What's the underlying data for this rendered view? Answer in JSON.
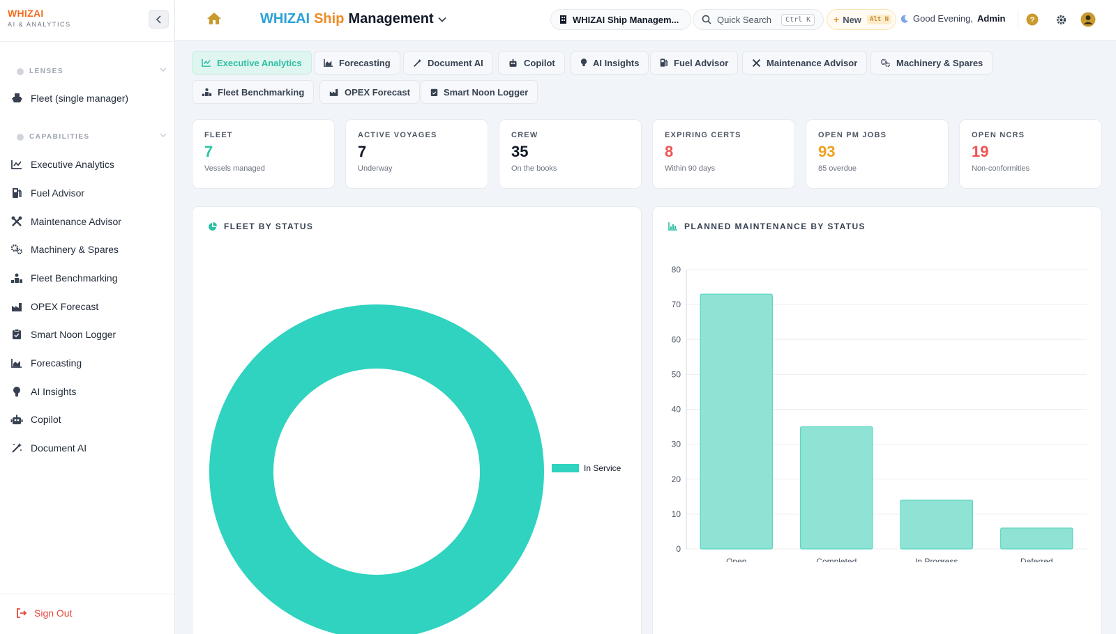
{
  "brand": {
    "name": "WHIZAI",
    "subtitle": "AI & ANALYTICS"
  },
  "header": {
    "title_part1": "WHIZAI",
    "title_part2": "Ship",
    "title_part3": "Management",
    "company": "WHIZAI Ship Managem...",
    "search_placeholder": "Quick Search",
    "search_shortcut": "Ctrl K",
    "new_label": "New",
    "new_shortcut": "Alt N",
    "greeting": "Good Evening,",
    "user": "Admin"
  },
  "sidebar": {
    "lenses_label": "LENSES",
    "lens_item": "Fleet (single manager)",
    "capabilities_label": "CAPABILITIES",
    "items": [
      {
        "label": "Executive Analytics",
        "icon": "line-chart-icon"
      },
      {
        "label": "Fuel Advisor",
        "icon": "gas-pump-icon"
      },
      {
        "label": "Maintenance Advisor",
        "icon": "tools-icon"
      },
      {
        "label": "Machinery & Spares",
        "icon": "gears-icon"
      },
      {
        "label": "Fleet Benchmarking",
        "icon": "benchmark-icon"
      },
      {
        "label": "OPEX Forecast",
        "icon": "factory-icon"
      },
      {
        "label": "Smart Noon Logger",
        "icon": "clipboard-icon"
      },
      {
        "label": "Forecasting",
        "icon": "area-chart-icon"
      },
      {
        "label": "AI Insights",
        "icon": "lightbulb-icon"
      },
      {
        "label": "Copilot",
        "icon": "robot-icon"
      },
      {
        "label": "Document AI",
        "icon": "magic-wand-icon"
      }
    ],
    "sign_out": "Sign Out"
  },
  "tabs": [
    {
      "label": "Executive Analytics",
      "active": true
    },
    {
      "label": "Forecasting"
    },
    {
      "label": "Document AI"
    },
    {
      "label": "Copilot"
    },
    {
      "label": "AI Insights"
    },
    {
      "label": "Fuel Advisor"
    },
    {
      "label": "Maintenance Advisor"
    },
    {
      "label": "Machinery & Spares"
    },
    {
      "label": "Fleet Benchmarking"
    },
    {
      "label": "OPEX Forecast"
    },
    {
      "label": "Smart Noon Logger"
    }
  ],
  "stats": [
    {
      "label": "FLEET",
      "value": "7",
      "sub": "Vessels managed",
      "color": "#2ec4a6"
    },
    {
      "label": "ACTIVE VOYAGES",
      "value": "7",
      "sub": "Underway",
      "color": "#111827"
    },
    {
      "label": "CREW",
      "value": "35",
      "sub": "On the books",
      "color": "#111827"
    },
    {
      "label": "EXPIRING CERTS",
      "value": "8",
      "sub": "Within 90 days",
      "color": "#ef5350"
    },
    {
      "label": "OPEN PM JOBS",
      "value": "93",
      "sub": "85 overdue",
      "color": "#f0a020"
    },
    {
      "label": "OPEN NCRS",
      "value": "19",
      "sub": "Non-conformities",
      "color": "#ef5350"
    }
  ],
  "panels": {
    "fleet_title": "FLEET BY STATUS",
    "pm_title": "PLANNED MAINTENANCE BY STATUS"
  },
  "chart_data": [
    {
      "type": "pie",
      "title": "FLEET BY STATUS",
      "labels": [
        "In Service"
      ],
      "values": [
        7
      ],
      "colors": [
        "#2fd3bf"
      ],
      "legend": "right"
    },
    {
      "type": "bar",
      "title": "PLANNED MAINTENANCE BY STATUS",
      "categories": [
        "Open",
        "Completed",
        "In Progress",
        "Deferred"
      ],
      "values": [
        73,
        35,
        14,
        6
      ],
      "ylim": [
        0,
        80
      ],
      "yticks": [
        0,
        10,
        20,
        30,
        40,
        50,
        60,
        70,
        80
      ],
      "grid": true,
      "color": "#8ee3d4"
    }
  ]
}
